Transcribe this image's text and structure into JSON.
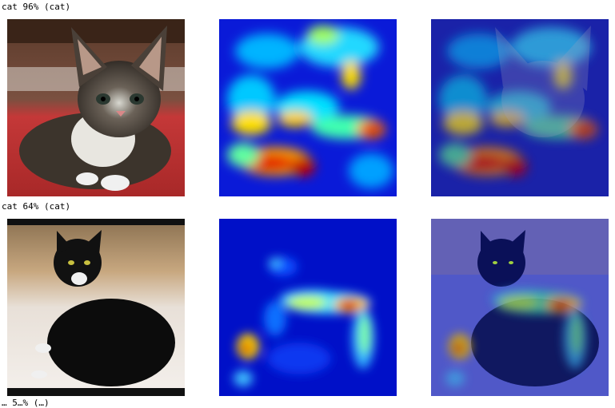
{
  "rows": [
    {
      "label": "cat 96% (cat)",
      "prediction": "cat",
      "confidence_percent": 96,
      "true_label": "cat"
    },
    {
      "label": "cat 64% (cat)",
      "prediction": "cat",
      "confidence_percent": 64,
      "true_label": "cat"
    },
    {
      "label": "… 5…% (…)"
    }
  ],
  "panel_types": [
    "original-photo",
    "heatmap",
    "heatmap-overlay"
  ],
  "colors": {
    "heat_low": "#00008b",
    "heat_mid": "#00c8ff",
    "heat_warm": "#ffe000",
    "heat_hot": "#c80000"
  }
}
